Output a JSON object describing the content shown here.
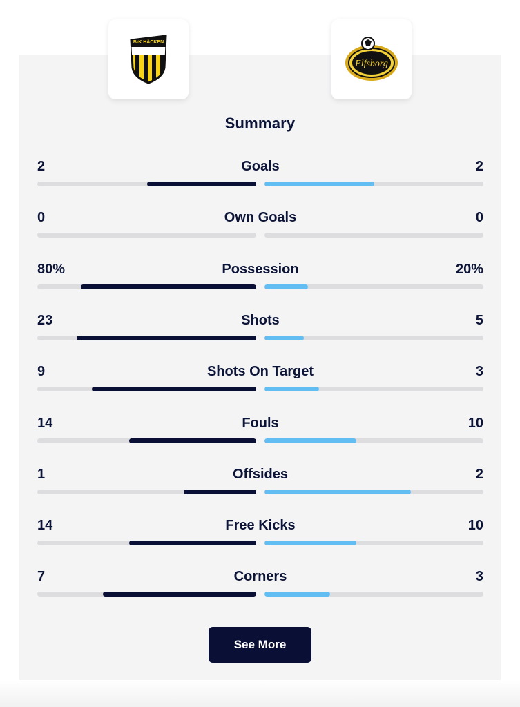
{
  "teams": {
    "home": {
      "logo_text": "B-K HÄCKEN",
      "logo_icon": "hacken-crest-icon",
      "color": "#0a0f35"
    },
    "away": {
      "logo_text": "Elfsborg",
      "logo_icon": "elfsborg-crest-icon",
      "color": "#62bef2"
    }
  },
  "summary": {
    "title": "Summary",
    "stats": [
      {
        "label": "Goals",
        "home": "2",
        "away": "2",
        "home_fraction": 0.5,
        "away_fraction": 0.5
      },
      {
        "label": "Own Goals",
        "home": "0",
        "away": "0",
        "home_fraction": 0,
        "away_fraction": 0
      },
      {
        "label": "Possession",
        "home": "80%",
        "away": "20%",
        "home_fraction": 0.8,
        "away_fraction": 0.2
      },
      {
        "label": "Shots",
        "home": "23",
        "away": "5",
        "home_fraction": 0.82,
        "away_fraction": 0.18
      },
      {
        "label": "Shots On Target",
        "home": "9",
        "away": "3",
        "home_fraction": 0.75,
        "away_fraction": 0.25
      },
      {
        "label": "Fouls",
        "home": "14",
        "away": "10",
        "home_fraction": 0.58,
        "away_fraction": 0.42
      },
      {
        "label": "Offsides",
        "home": "1",
        "away": "2",
        "home_fraction": 0.33,
        "away_fraction": 0.67
      },
      {
        "label": "Free Kicks",
        "home": "14",
        "away": "10",
        "home_fraction": 0.58,
        "away_fraction": 0.42
      },
      {
        "label": "Corners",
        "home": "7",
        "away": "3",
        "home_fraction": 0.7,
        "away_fraction": 0.3
      }
    ]
  },
  "actions": {
    "see_more_label": "See More"
  }
}
